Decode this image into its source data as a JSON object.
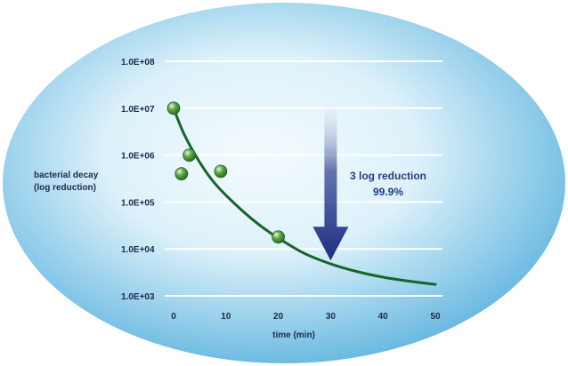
{
  "chart_data": {
    "type": "scatter",
    "title": "",
    "xlabel": "time (min)",
    "ylabel_lines": [
      "bacterial decay",
      "(log reduction)"
    ],
    "x_ticks": [
      0,
      10,
      20,
      30,
      40,
      50
    ],
    "y_tick_labels": [
      "1.0E+03",
      "1.0E+04",
      "1.0E+05",
      "1.0E+06",
      "1.0E+07",
      "1.0E+08"
    ],
    "xlim": [
      0,
      50
    ],
    "ylim_log10": [
      3,
      8
    ],
    "y_scale": "log",
    "grid": "horizontal",
    "points": [
      {
        "x": 0,
        "y": 10000000
      },
      {
        "x": 3,
        "y": 1000000
      },
      {
        "x": 1.5,
        "y": 400000
      },
      {
        "x": 9,
        "y": 450000
      },
      {
        "x": 20,
        "y": 18000
      }
    ],
    "fit_curve": [
      {
        "x": 0,
        "y": 10000000
      },
      {
        "x": 2,
        "y": 2800000
      },
      {
        "x": 5,
        "y": 700000
      },
      {
        "x": 8,
        "y": 240000
      },
      {
        "x": 12,
        "y": 85000
      },
      {
        "x": 16,
        "y": 35000
      },
      {
        "x": 20,
        "y": 17000
      },
      {
        "x": 25,
        "y": 8000
      },
      {
        "x": 30,
        "y": 4800
      },
      {
        "x": 35,
        "y": 3300
      },
      {
        "x": 40,
        "y": 2500
      },
      {
        "x": 45,
        "y": 2050
      },
      {
        "x": 50,
        "y": 1750
      }
    ],
    "annotation": {
      "lines": [
        "3 log reduction",
        "99.9%"
      ],
      "arrow_x": 30,
      "arrow_from_y": 10000000,
      "arrow_to_y": 10000
    },
    "colors": {
      "background_light": "#f4fbfe",
      "background_dark": "#5fb4df",
      "grid": "#ffffff",
      "curve": "#16652a",
      "point": "#5fa845",
      "point_highlight": "#e5f7d5",
      "annotation": "#233c8c",
      "arrow": "#1e2e82",
      "text": "#1c2a4d"
    }
  }
}
